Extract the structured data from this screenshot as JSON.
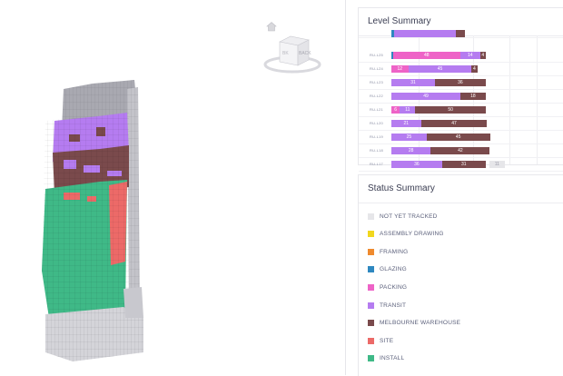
{
  "colors": {
    "not_yet_tracked": "#e6e6e9",
    "assembly_drawing": "#f1d71e",
    "framing": "#ef8a2e",
    "glazing": "#2e88c0",
    "packing": "#ee63c7",
    "transit": "#b57cf0",
    "melbourne_warehouse": "#7a4a4c",
    "site": "#ec6a68",
    "install": "#3fb987"
  },
  "viewer": {
    "home_icon": "home-icon",
    "viewcube": {
      "face_left": "BK",
      "face_right": "BACK"
    }
  },
  "level_summary": {
    "title": "Level Summary",
    "rows": [
      {
        "label": "",
        "segments": [
          {
            "status": "glazing",
            "value": 2,
            "text": ""
          },
          {
            "status": "transit",
            "value": 44,
            "text": ""
          },
          {
            "status": "melbourne_warehouse",
            "value": 6,
            "text": ""
          }
        ]
      },
      {
        "label": "RU-L25",
        "segments": [
          {
            "status": "glazing",
            "value": 1,
            "text": ""
          },
          {
            "status": "packing",
            "value": 48,
            "text": "48"
          },
          {
            "status": "transit",
            "value": 14,
            "text": "14"
          },
          {
            "status": "melbourne_warehouse",
            "value": 4,
            "text": "4"
          }
        ]
      },
      {
        "label": "RU-L24",
        "segments": [
          {
            "status": "packing",
            "value": 12,
            "text": "12"
          },
          {
            "status": "transit",
            "value": 45,
            "text": "45"
          },
          {
            "status": "melbourne_warehouse",
            "value": 4,
            "text": "4"
          }
        ]
      },
      {
        "label": "RU-L23",
        "segments": [
          {
            "status": "transit",
            "value": 31,
            "text": "31"
          },
          {
            "status": "melbourne_warehouse",
            "value": 36,
            "text": "36"
          }
        ]
      },
      {
        "label": "RU-L22",
        "segments": [
          {
            "status": "transit",
            "value": 49,
            "text": "49"
          },
          {
            "status": "melbourne_warehouse",
            "value": 18,
            "text": "18"
          }
        ]
      },
      {
        "label": "RU-L21",
        "segments": [
          {
            "status": "packing",
            "value": 6,
            "text": "6"
          },
          {
            "status": "transit",
            "value": 11,
            "text": "11"
          },
          {
            "status": "melbourne_warehouse",
            "value": 50,
            "text": "50"
          }
        ]
      },
      {
        "label": "RU-L20",
        "segments": [
          {
            "status": "transit",
            "value": 21,
            "text": "21"
          },
          {
            "status": "melbourne_warehouse",
            "value": 47,
            "text": "47"
          }
        ]
      },
      {
        "label": "RU-L19",
        "segments": [
          {
            "status": "transit",
            "value": 25,
            "text": "25"
          },
          {
            "status": "melbourne_warehouse",
            "value": 45,
            "text": "45"
          }
        ]
      },
      {
        "label": "RU-L18",
        "segments": [
          {
            "status": "transit",
            "value": 28,
            "text": "28"
          },
          {
            "status": "melbourne_warehouse",
            "value": 42,
            "text": "42"
          }
        ]
      },
      {
        "label": "RU-L17",
        "segments": [
          {
            "status": "transit",
            "value": 36,
            "text": "36"
          },
          {
            "status": "melbourne_warehouse",
            "value": 31,
            "text": "31"
          },
          {
            "status": "not_yet_tracked",
            "value": 11,
            "text": "11"
          }
        ]
      }
    ]
  },
  "status_summary": {
    "title": "Status Summary",
    "items": [
      {
        "label": "NOT YET TRACKED",
        "status": "not_yet_tracked"
      },
      {
        "label": "ASSEMBLY DRAWING",
        "status": "assembly_drawing"
      },
      {
        "label": "FRAMING",
        "status": "framing"
      },
      {
        "label": "GLAZING",
        "status": "glazing"
      },
      {
        "label": "PACKING",
        "status": "packing"
      },
      {
        "label": "TRANSIT",
        "status": "transit"
      },
      {
        "label": "MELBOURNE WAREHOUSE",
        "status": "melbourne_warehouse"
      },
      {
        "label": "SITE",
        "status": "site"
      },
      {
        "label": "INSTALL",
        "status": "install"
      }
    ]
  }
}
